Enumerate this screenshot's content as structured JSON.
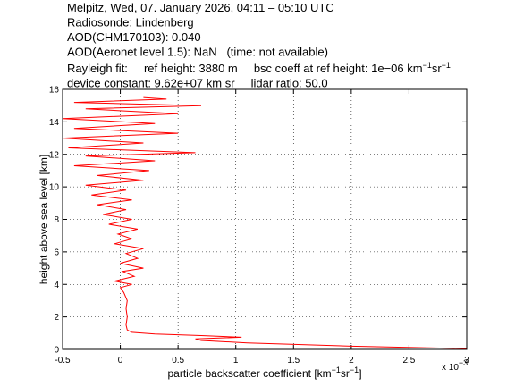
{
  "chart_data": {
    "type": "line",
    "header": [
      [
        "Melpitz, Wed, 07. January 2026, 04:11 – 05:10 UTC"
      ],
      [
        "Radiosonde: Lindenberg"
      ],
      [
        "AOD(CHM170103): 0.040"
      ],
      [
        "AOD(Aeronet level 1.5): NaN   (time: not available)"
      ],
      [
        "Rayleigh fit:     ref height: 3880 m     bsc coeff at ref height: 1e−06 km",
        "−1",
        "sr",
        "−1"
      ],
      [
        "device constant: 9.62e+07 km sr     lidar ratio: 50.0"
      ]
    ],
    "xlabel": [
      "particle backscatter coefficient [km",
      "−1",
      "sr",
      "−1",
      "]"
    ],
    "ylabel": "height above sea level [km]",
    "x_exponent": [
      "x 10",
      "−3"
    ],
    "x": [
      3.0,
      2.0,
      1.1,
      0.7,
      0.65,
      1.05,
      0.7,
      0.3,
      0.1,
      0.06,
      0.05,
      0.06,
      0.05,
      0.06,
      0.03,
      0.0,
      0.1,
      -0.05,
      0.12,
      0.02,
      0.2,
      0.0,
      0.15,
      0.05,
      0.2,
      -0.05,
      0.1,
      -0.02,
      0.15,
      -0.1,
      0.1,
      -0.15,
      0.05,
      -0.2,
      0.1,
      -0.25,
      0.05,
      -0.3,
      0.2,
      -0.2,
      0.25,
      -0.4,
      0.3,
      -0.3,
      0.65,
      -0.45,
      0.2,
      -0.5,
      0.5,
      -0.4,
      0.3,
      -0.5,
      0.5,
      -0.3,
      0.7,
      -0.4,
      0.4,
      0.2
    ],
    "series": [
      {
        "color": "#ff0000",
        "values": [
          0.05,
          0.2,
          0.4,
          0.55,
          0.65,
          0.75,
          0.85,
          0.95,
          1.05,
          1.2,
          1.5,
          2,
          2.5,
          3,
          3.5,
          3.8,
          4,
          4.2,
          4.5,
          4.8,
          5,
          5.3,
          5.6,
          5.9,
          6.2,
          6.5,
          6.8,
          7.1,
          7.4,
          7.7,
          8,
          8.3,
          8.6,
          8.9,
          9.2,
          9.5,
          9.8,
          10.1,
          10.4,
          10.7,
          11,
          11.3,
          11.6,
          11.9,
          12.1,
          12.4,
          12.7,
          13,
          13.3,
          13.6,
          13.9,
          14.2,
          14.5,
          14.8,
          15,
          15.2,
          15.4,
          15.5
        ]
      }
    ],
    "xlim": [
      -0.5,
      3
    ],
    "xticks": [
      -0.5,
      0,
      0.5,
      1,
      1.5,
      2,
      2.5,
      3
    ],
    "ylim": [
      0,
      16
    ],
    "yticks": [
      0,
      2,
      4,
      6,
      8,
      10,
      12,
      14,
      16
    ],
    "grid": true
  }
}
